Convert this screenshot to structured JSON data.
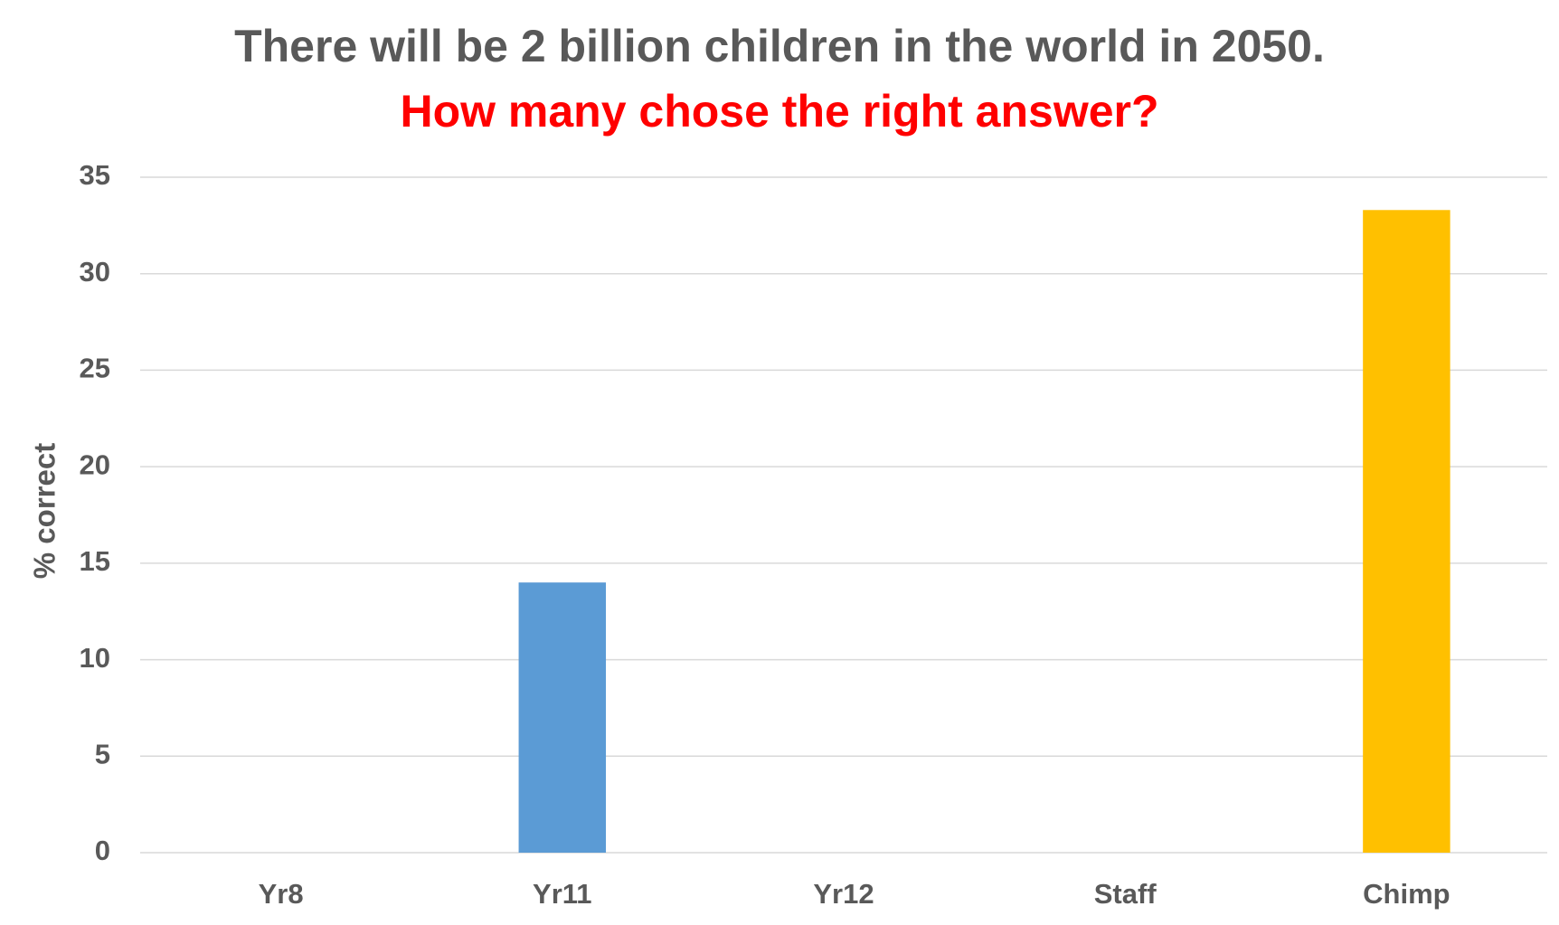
{
  "chart_data": {
    "type": "bar",
    "title": "There will be 2 billion children in the world in 2050.",
    "subtitle": "How many chose the right answer?",
    "y_label": "% correct",
    "categories": [
      "Yr8",
      "Yr11",
      "Yr12",
      "Staff",
      "Chimp"
    ],
    "values": [
      0,
      14,
      0,
      0,
      33.3
    ],
    "colors": [
      "#5b9bd5",
      "#5b9bd5",
      "#5b9bd5",
      "#5b9bd5",
      "#ffc000"
    ],
    "ylim": [
      0,
      35
    ],
    "yticks": [
      0,
      5,
      10,
      15,
      20,
      25,
      30,
      35
    ],
    "grid": true
  }
}
